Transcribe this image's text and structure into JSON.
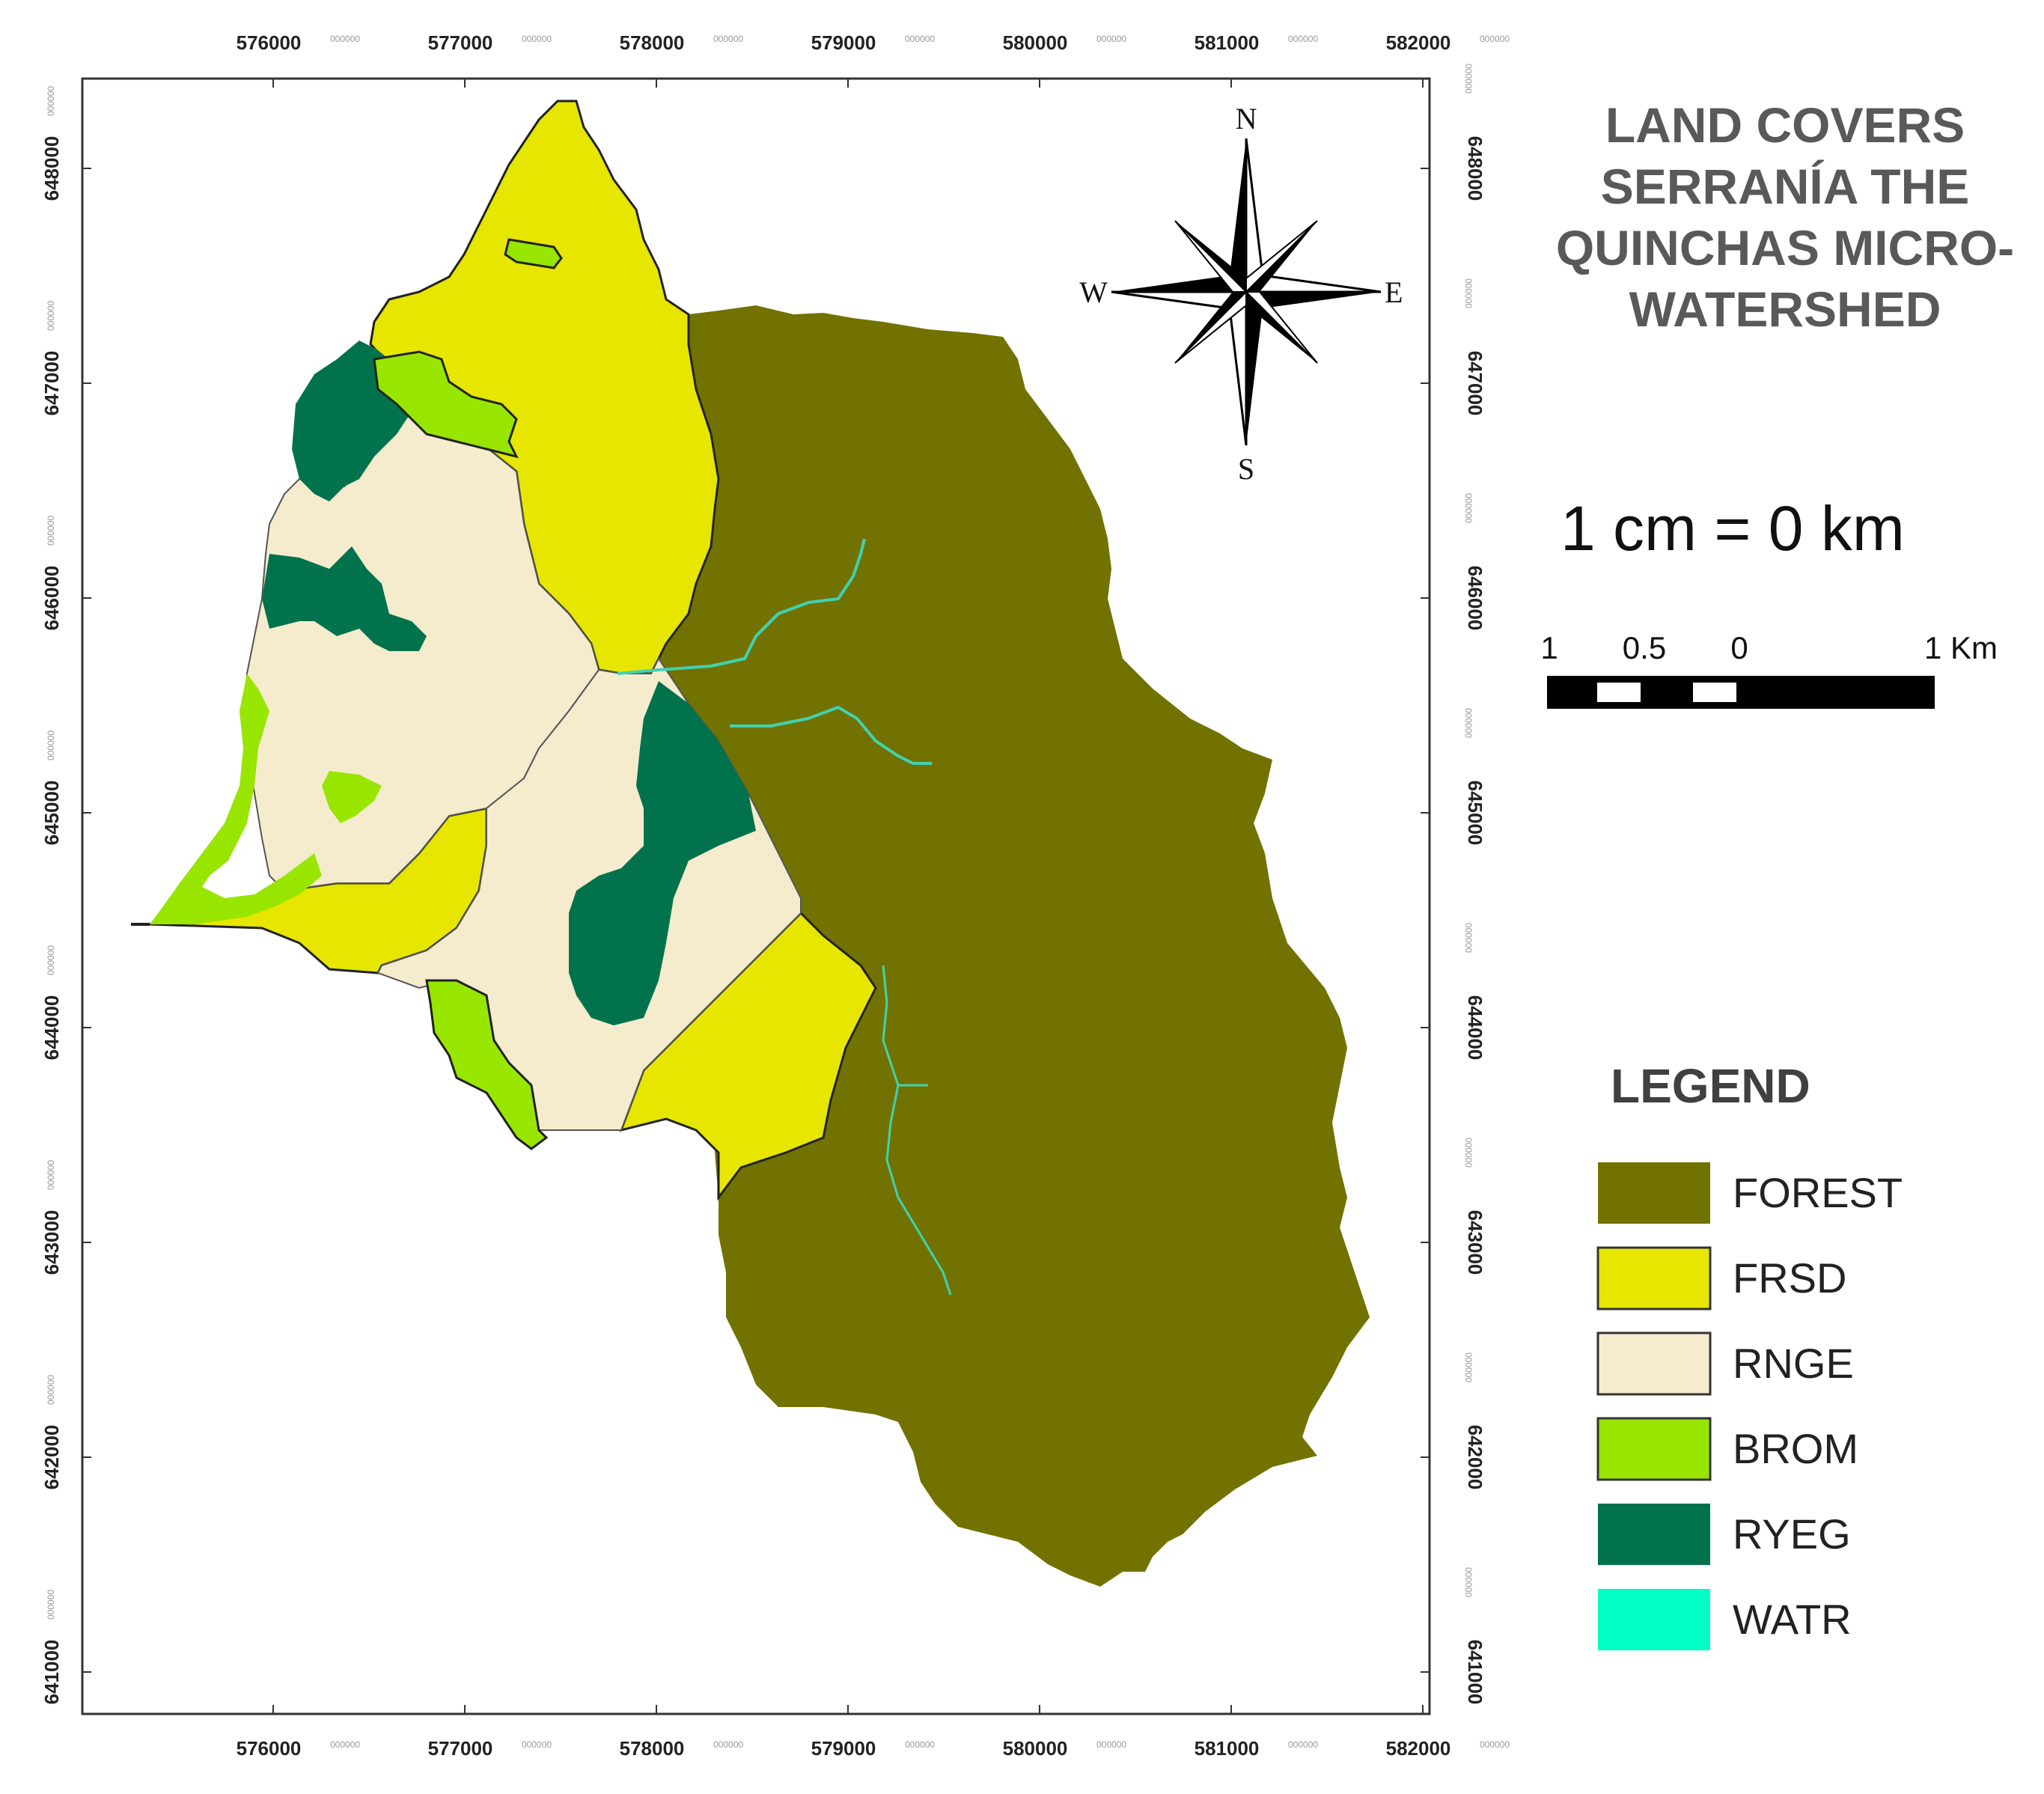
{
  "map": {
    "title_lines": [
      "LAND COVERS",
      "SERRANÍA THE",
      "QUINCHAS MICRO-",
      "WATERSHED"
    ],
    "scale_ratio": "1 cm = 0 km",
    "scalebar": {
      "labels": [
        "1",
        "0.5",
        "0",
        "1 Km"
      ]
    },
    "compass": {
      "n": "N",
      "s": "S",
      "e": "E",
      "w": "W"
    },
    "grid": {
      "x_ticks": [
        "576000",
        "577000",
        "578000",
        "579000",
        "580000",
        "581000",
        "582000"
      ],
      "y_ticks": [
        "648000",
        "647000",
        "646000",
        "645000",
        "644000",
        "643000",
        "642000",
        "641000"
      ],
      "tick_suffix": "000000"
    },
    "legend": {
      "title": "LEGEND",
      "items": [
        {
          "label": "FOREST",
          "color": "#727200"
        },
        {
          "label": "FRSD",
          "color": "#e6e600"
        },
        {
          "label": "RNGE",
          "color": "#f5ecce"
        },
        {
          "label": "BROM",
          "color": "#98e600"
        },
        {
          "label": "RYEG",
          "color": "#00734c"
        },
        {
          "label": "WATR",
          "color": "#00ffc5"
        }
      ]
    }
  }
}
